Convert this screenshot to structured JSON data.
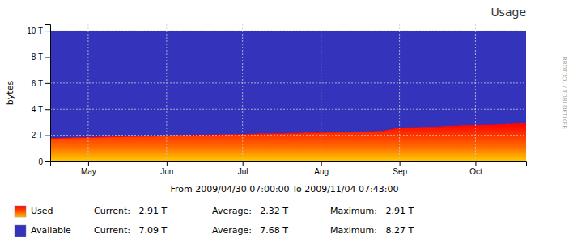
{
  "chart_data": {
    "type": "area",
    "title": "Usage",
    "subtitle": "From 2009/04/30 07:00:00 To 2009/11/04 07:43:00",
    "y_label": "bytes",
    "annotations": [
      "RRDTOOL / TOBI OETIKER"
    ],
    "stacked": true,
    "grid": true,
    "legend": "bottom",
    "x": [
      0,
      10,
      20,
      31,
      41,
      46,
      51,
      61,
      71,
      76,
      81,
      91,
      101,
      107,
      111,
      121,
      131,
      138,
      141,
      151,
      158,
      161,
      168,
      178,
      188
    ],
    "series": [
      {
        "name": "Used",
        "color": "#FF0000",
        "values": [
          1.75,
          1.8,
          1.85,
          1.9,
          1.93,
          1.97,
          1.99,
          2.02,
          2.05,
          2.07,
          2.1,
          2.13,
          2.17,
          2.2,
          2.22,
          2.25,
          2.3,
          2.55,
          2.58,
          2.62,
          2.68,
          2.72,
          2.75,
          2.8,
          2.91
        ],
        "stats": [
          "Current:   2.91 T",
          "Average:   2.32 T",
          "Maximum:   2.91 T"
        ]
      },
      {
        "name": "Available",
        "color": "#3333BB",
        "values": [
          8.25,
          8.2,
          8.15,
          8.1,
          8.07,
          8.03,
          8.01,
          7.98,
          7.95,
          7.93,
          7.9,
          7.87,
          7.83,
          7.8,
          7.78,
          7.75,
          7.7,
          7.45,
          7.42,
          7.38,
          7.32,
          7.28,
          7.25,
          7.2,
          7.09
        ],
        "stats": [
          "Current:   7.09 T",
          "Average:   7.68 T",
          "Maximum:   8.27 T"
        ]
      }
    ],
    "xlim": [
      0,
      188
    ],
    "xticks": [
      {
        "value": 15,
        "label": "May"
      },
      {
        "value": 46,
        "label": "Jun"
      },
      {
        "value": 76,
        "label": "Jul"
      },
      {
        "value": 107,
        "label": "Aug"
      },
      {
        "value": 138,
        "label": "Sep"
      },
      {
        "value": 168,
        "label": "Oct"
      }
    ],
    "ylim": [
      0,
      10.5
    ],
    "yticks": [
      0,
      {
        "value": 2,
        "label": "2 T"
      },
      {
        "value": 4,
        "label": "4 T"
      },
      {
        "value": 6,
        "label": "6 T"
      },
      {
        "value": 8,
        "label": "8 T"
      },
      {
        "value": 10,
        "label": "10 T"
      }
    ]
  }
}
